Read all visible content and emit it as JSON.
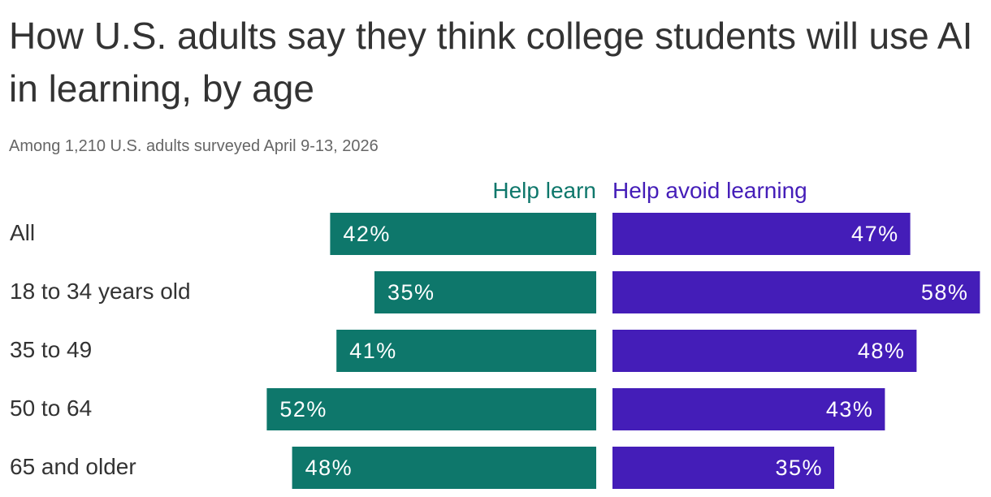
{
  "title": "How U.S. adults say they think college students will use AI in learning, by age",
  "subtitle": "Among 1,210 U.S. adults surveyed April 9-13, 2026",
  "colors": {
    "help_learn": "#0e776b",
    "avoid_learning": "#441db8"
  },
  "chart_data": {
    "type": "bar",
    "title": "How U.S. adults say they think college students will use AI in learning, by age",
    "subtitle": "Among 1,210 U.S. adults surveyed April 9-13, 2026",
    "categories": [
      "All",
      "18 to 34 years old",
      "35 to 49",
      "50 to 64",
      "65 and older"
    ],
    "series": [
      {
        "name": "Help learn",
        "values": [
          42,
          35,
          41,
          52,
          48
        ],
        "labels": [
          "42%",
          "35%",
          "41%",
          "52%",
          "48%"
        ]
      },
      {
        "name": "Help avoid learning",
        "values": [
          47,
          58,
          48,
          43,
          35
        ],
        "labels": [
          "47%",
          "58%",
          "48%",
          "43%",
          "35%"
        ]
      }
    ],
    "layout": "diverging-horizontal",
    "legend": "top-center",
    "grid": false
  }
}
